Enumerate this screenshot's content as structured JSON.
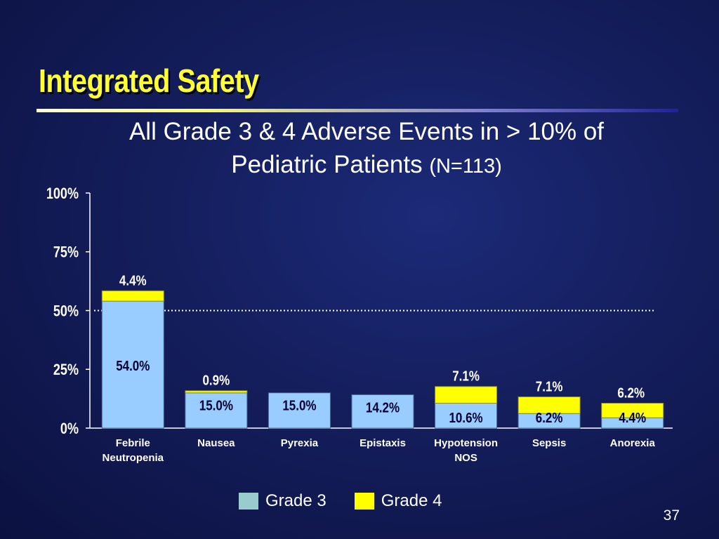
{
  "slide": {
    "title": "Integrated Safety",
    "subtitle_line1": "All Grade 3 & 4 Adverse Events in > 10% of",
    "subtitle_line2": "Pediatric Patients",
    "subtitle_n": "(N=113)",
    "page_number": "37"
  },
  "chart_data": {
    "type": "bar",
    "stacked": true,
    "categories": [
      [
        "Febrile",
        "Neutropenia"
      ],
      [
        "Nausea"
      ],
      [
        "Pyrexia"
      ],
      [
        "Epistaxis"
      ],
      [
        "Hypotension",
        "NOS"
      ],
      [
        "Sepsis"
      ],
      [
        "Anorexia"
      ]
    ],
    "series": [
      {
        "name": "Grade 3",
        "color": "#99ccff",
        "values": [
          54.0,
          15.0,
          15.0,
          14.2,
          10.6,
          6.2,
          4.4
        ],
        "labels": [
          "54.0%",
          "15.0%",
          "15.0%",
          "14.2%",
          "10.6%",
          "6.2%",
          "4.4%"
        ]
      },
      {
        "name": "Grade 4",
        "color": "#ffff00",
        "values": [
          4.4,
          0.9,
          0,
          0,
          7.1,
          7.1,
          6.2
        ],
        "labels": [
          "4.4%",
          "0.9%",
          "",
          "",
          "7.1%",
          "7.1%",
          "6.2%"
        ]
      }
    ],
    "ylim": [
      0,
      100
    ],
    "yticks": [
      "0%",
      "25%",
      "50%",
      "75%",
      "100%"
    ],
    "ytick_values": [
      0,
      25,
      50,
      75,
      100
    ],
    "reference_line": 50,
    "legend_position": "bottom-center",
    "legend_swatch_colors": [
      "#99cccc",
      "#ffff00"
    ]
  }
}
